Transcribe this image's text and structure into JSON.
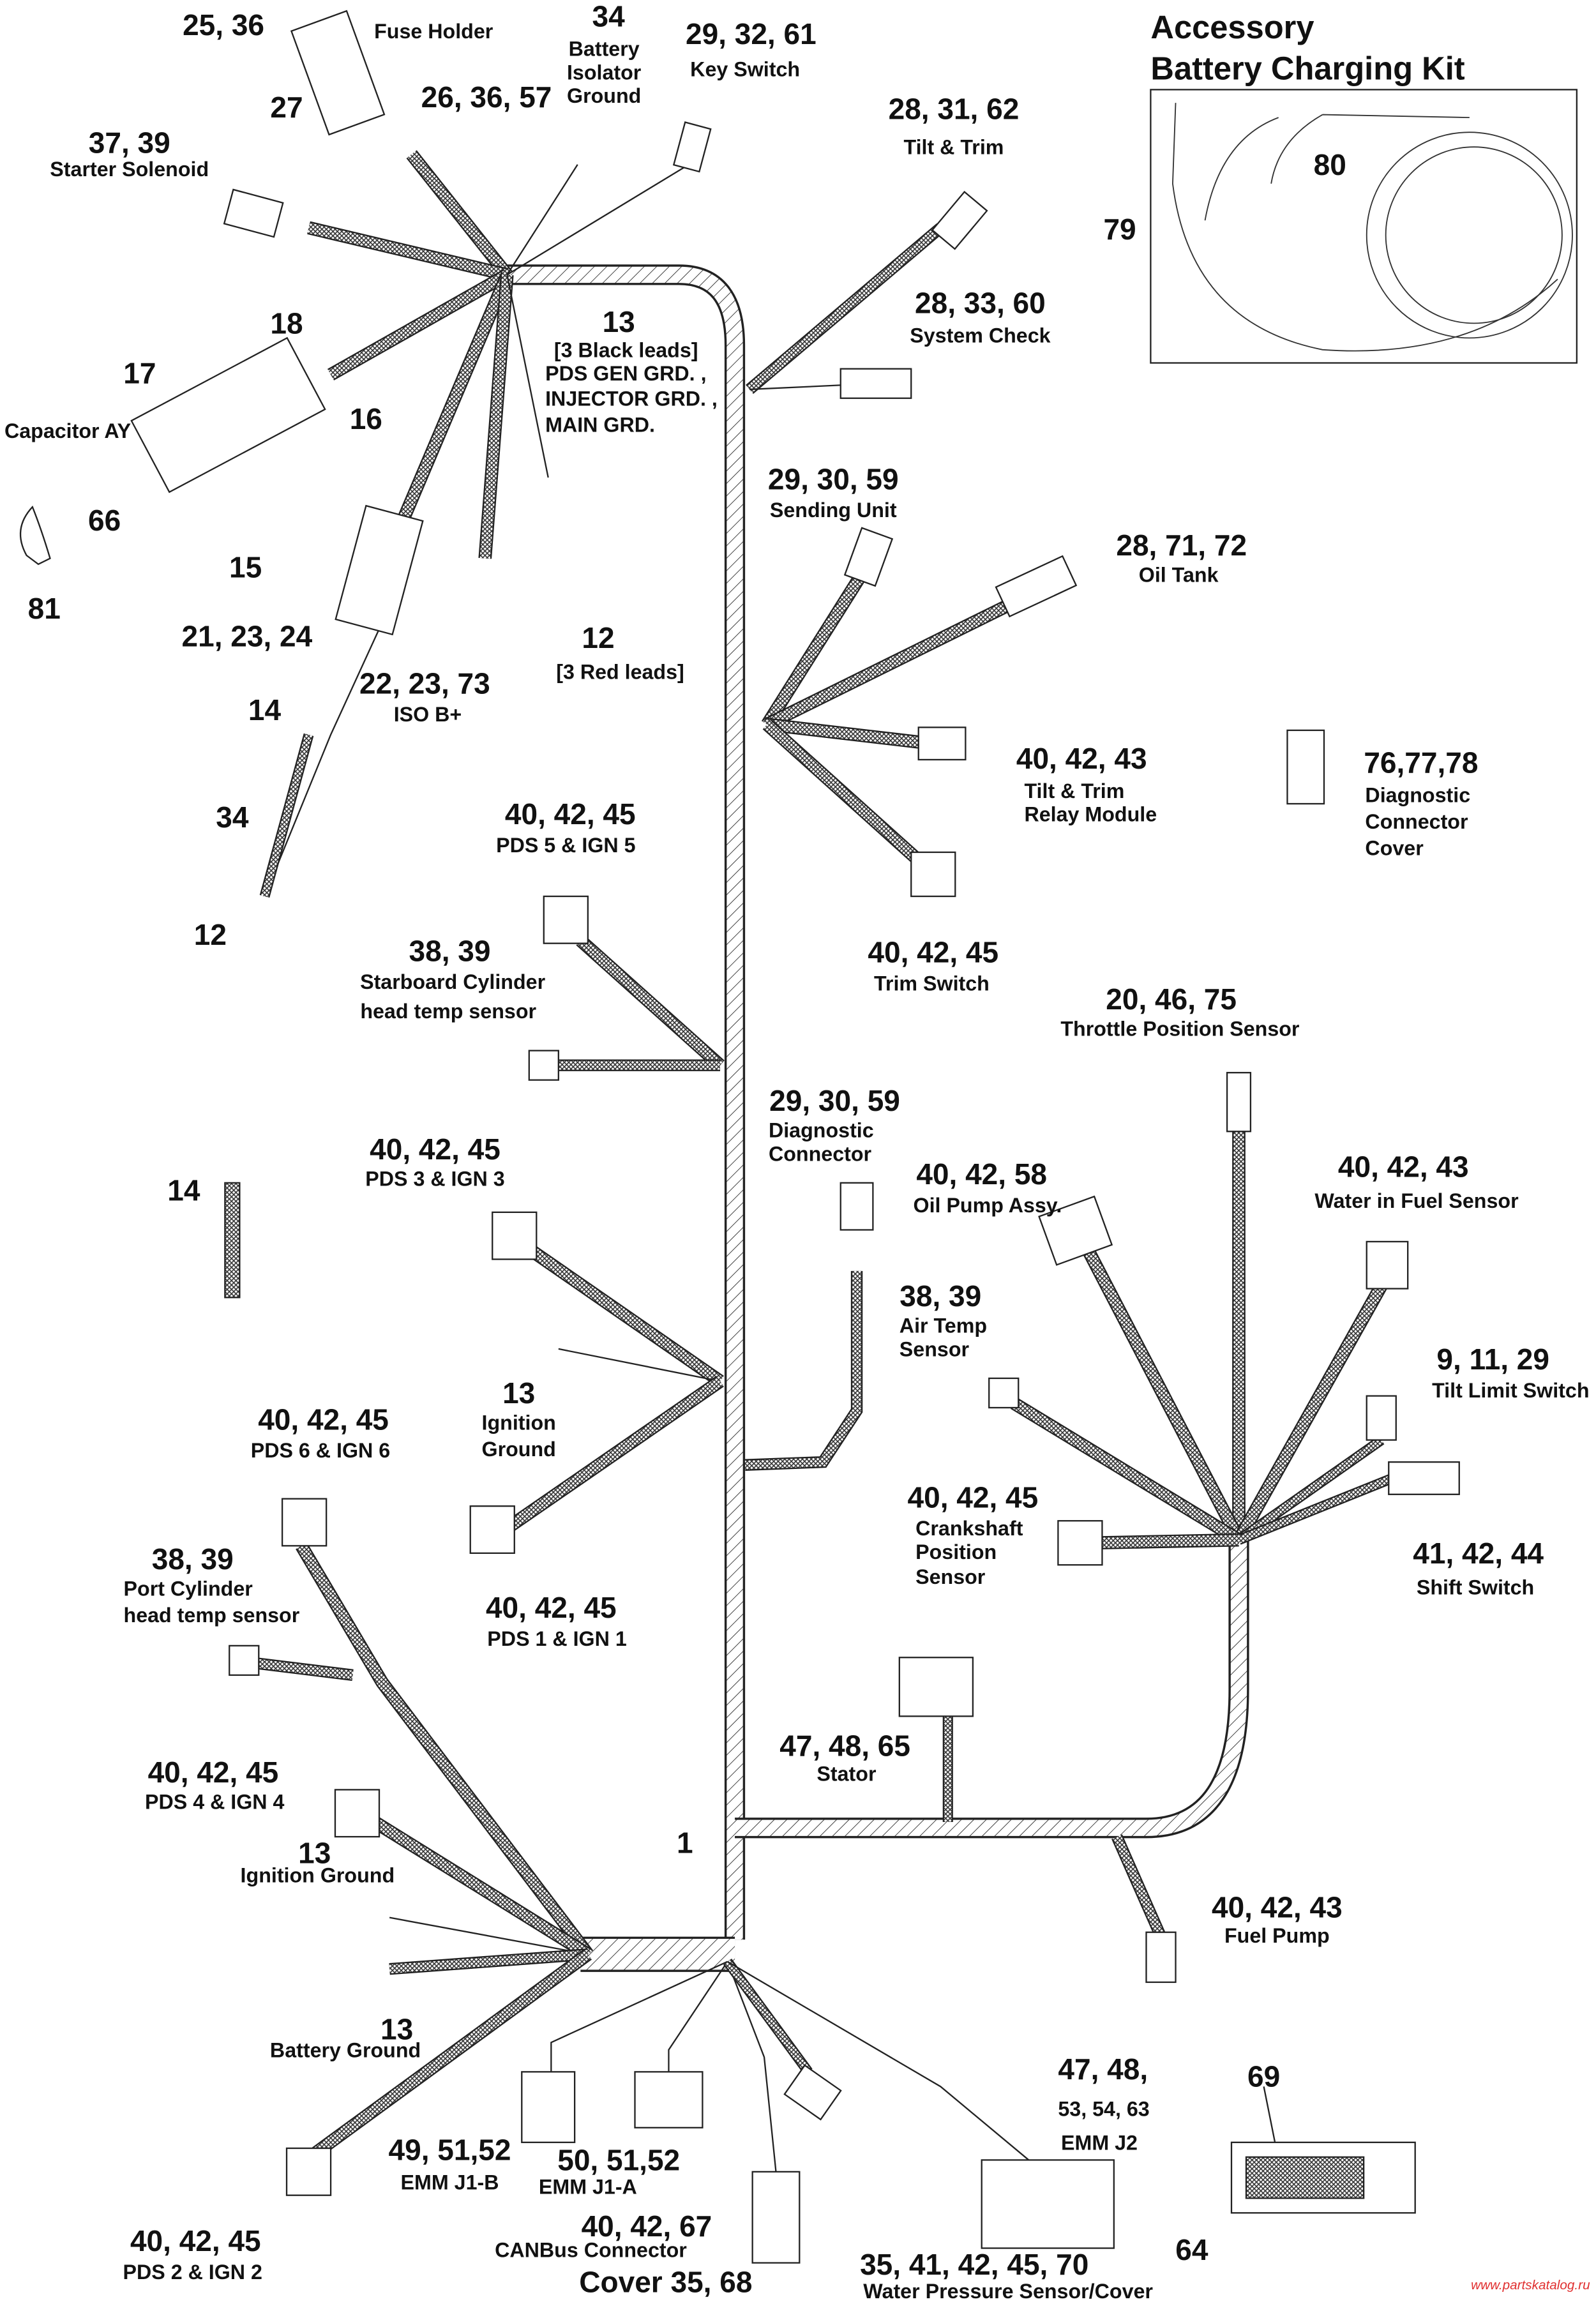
{
  "diagram": {
    "kit": {
      "title_1": "Accessory",
      "title_2": "Battery Charging Kit",
      "n80": "80",
      "n79": "79"
    },
    "watermark": "www.partskatalog.ru",
    "callouts": [
      {
        "number": "25, 36",
        "desc": [
          "Fuse Holder"
        ]
      },
      {
        "number": "27",
        "desc": []
      },
      {
        "number": "26, 36, 57",
        "desc": []
      },
      {
        "number": "34",
        "desc": [
          "Battery",
          "Isolator",
          "Ground"
        ]
      },
      {
        "number": "29, 32, 61",
        "desc": [
          "Key Switch"
        ]
      },
      {
        "number": "28, 31, 62",
        "desc": [
          "Tilt & Trim"
        ]
      },
      {
        "number": "37, 39",
        "desc": [
          "Starter Solenoid"
        ]
      },
      {
        "number": "18",
        "desc": []
      },
      {
        "number": "17",
        "desc": [
          "Capacitor AY"
        ]
      },
      {
        "number": "16",
        "desc": []
      },
      {
        "number": "66",
        "desc": []
      },
      {
        "number": "15",
        "desc": []
      },
      {
        "number": "81",
        "desc": []
      },
      {
        "number": "13",
        "desc": [
          "[3 Black leads]",
          "PDS GEN GRD. ,",
          "INJECTOR GRD. ,",
          "MAIN GRD."
        ]
      },
      {
        "number": "28, 33, 60",
        "desc": [
          "System Check"
        ]
      },
      {
        "number": "21, 23, 24",
        "desc": []
      },
      {
        "number": "22, 23, 73",
        "desc": [
          "ISO B+"
        ]
      },
      {
        "number": "12",
        "desc": [
          "[3 Red leads]"
        ]
      },
      {
        "number": "14",
        "desc": []
      },
      {
        "number": "34",
        "desc": []
      },
      {
        "number": "12",
        "desc": []
      },
      {
        "number": "29, 30, 59",
        "desc": [
          "Sending Unit"
        ]
      },
      {
        "number": "28, 71, 72",
        "desc": [
          "Oil Tank"
        ]
      },
      {
        "number": "40, 42, 43",
        "desc": [
          "Tilt & Trim",
          "Relay Module"
        ]
      },
      {
        "number": "76,77,78",
        "desc": [
          "Diagnostic",
          "Connector",
          "Cover"
        ]
      },
      {
        "number": "40, 42, 45",
        "desc": [
          "PDS 5 & IGN 5"
        ]
      },
      {
        "number": "38, 39",
        "desc": [
          "Starboard Cylinder",
          "head temp sensor"
        ]
      },
      {
        "number": "40, 42, 45",
        "desc": [
          "Trim Switch"
        ]
      },
      {
        "number": "20, 46, 75",
        "desc": [
          "Throttle Position Sensor"
        ]
      },
      {
        "number": "29, 30, 59",
        "desc": [
          "Diagnostic",
          "Connector"
        ]
      },
      {
        "number": "40, 42, 45",
        "desc": [
          "PDS 3 & IGN 3"
        ]
      },
      {
        "number": "14",
        "desc": []
      },
      {
        "number": "40, 42, 58",
        "desc": [
          "Oil Pump Assy."
        ]
      },
      {
        "number": "40, 42, 43",
        "desc": [
          "Water in Fuel Sensor"
        ]
      },
      {
        "number": "38, 39",
        "desc": [
          "Air Temp",
          "Sensor"
        ]
      },
      {
        "number": "9, 11, 29",
        "desc": [
          "Tilt Limit Switch"
        ]
      },
      {
        "number": "13",
        "desc": [
          "Ignition",
          "Ground"
        ]
      },
      {
        "number": "40, 42, 45",
        "desc": [
          "PDS 6 & IGN 6"
        ]
      },
      {
        "number": "40, 42, 45",
        "desc": [
          "Crankshaft",
          "Position",
          "Sensor"
        ]
      },
      {
        "number": "41, 42, 44",
        "desc": [
          "Shift Switch"
        ]
      },
      {
        "number": "38, 39",
        "desc": [
          "Port Cylinder",
          "head temp sensor"
        ]
      },
      {
        "number": "40, 42, 45",
        "desc": [
          "PDS 1 & IGN 1"
        ]
      },
      {
        "number": "47, 48, 65",
        "desc": [
          "Stator"
        ]
      },
      {
        "number": "40, 42, 45",
        "desc": [
          "PDS 4 & IGN 4"
        ]
      },
      {
        "number": "13",
        "desc": [
          "Ignition Ground"
        ]
      },
      {
        "number": "1",
        "desc": []
      },
      {
        "number": "40, 42, 43",
        "desc": [
          "Fuel Pump"
        ]
      },
      {
        "number": "13",
        "desc": [
          "Battery Ground"
        ]
      },
      {
        "number": "47, 48,",
        "desc": [
          "53, 54, 63",
          "EMM J2"
        ]
      },
      {
        "number": "69",
        "desc": []
      },
      {
        "number": "49, 51,52",
        "desc": [
          "EMM J1-B"
        ]
      },
      {
        "number": "50, 51,52",
        "desc": [
          "EMM J1-A"
        ]
      },
      {
        "number": "40, 42, 67",
        "desc": [
          "CANBus Connector"
        ]
      },
      {
        "number": "Cover 35, 68",
        "desc": []
      },
      {
        "number": "35, 41, 42, 45, 70",
        "desc": [
          "Water Pressure Sensor/Cover"
        ]
      },
      {
        "number": "64",
        "desc": []
      },
      {
        "number": "40, 42, 45",
        "desc": [
          "PDS 2 & IGN 2"
        ]
      }
    ]
  }
}
